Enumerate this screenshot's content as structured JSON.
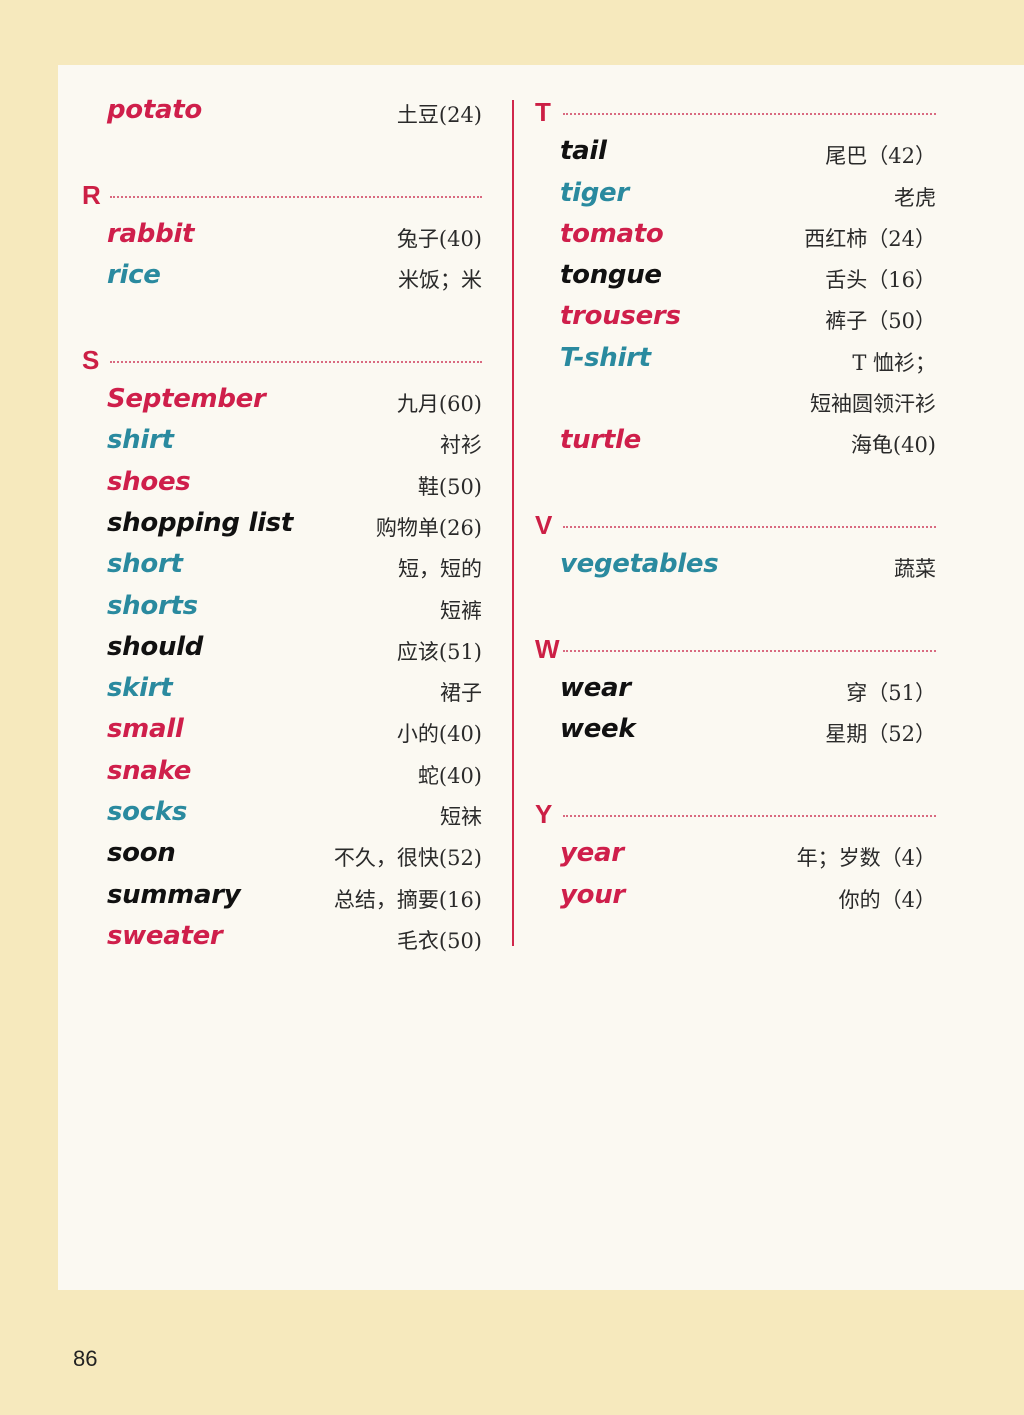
{
  "colors": {
    "red": "#cf1f4b",
    "teal": "#2a8a9f",
    "black": "#111111",
    "divider": "#d0284c",
    "background": "#f6e9bd",
    "paper": "#fbf9f2"
  },
  "left": {
    "potato": {
      "word": "potato",
      "cn": "土豆(24)"
    },
    "R": "R",
    "rabbit": {
      "word": "rabbit",
      "cn": "兔子(40)"
    },
    "rice": {
      "word": "rice",
      "cn": "米饭；米"
    },
    "S": "S",
    "september": {
      "word": "September",
      "cn": "九月(60)"
    },
    "shirt": {
      "word": "shirt",
      "cn": "衬衫"
    },
    "shoes": {
      "word": "shoes",
      "cn": "鞋(50)"
    },
    "shopping_list": {
      "word": "shopping list",
      "cn": "购物单(26)"
    },
    "short": {
      "word": "short",
      "cn": "短，短的"
    },
    "shorts": {
      "word": "shorts",
      "cn": "短裤"
    },
    "should": {
      "word": "should",
      "cn": "应该(51)"
    },
    "skirt": {
      "word": "skirt",
      "cn": "裙子"
    },
    "small": {
      "word": "small",
      "cn": "小的(40)"
    },
    "snake": {
      "word": "snake",
      "cn": "蛇(40)"
    },
    "socks": {
      "word": "socks",
      "cn": "短袜"
    },
    "soon": {
      "word": "soon",
      "cn": "不久，很快(52)"
    },
    "summary": {
      "word": "summary",
      "cn": "总结，摘要(16)"
    },
    "sweater": {
      "word": "sweater",
      "cn": "毛衣(50)"
    }
  },
  "right": {
    "T": "T",
    "tail": {
      "word": "tail",
      "cn": "尾巴（42）"
    },
    "tiger": {
      "word": "tiger",
      "cn": "老虎"
    },
    "tomato": {
      "word": "tomato",
      "cn": "西红柿（24）"
    },
    "tongue": {
      "word": "tongue",
      "cn": "舌头（16）"
    },
    "trousers": {
      "word": "trousers",
      "cn": "裤子（50）"
    },
    "tshirt": {
      "word": "T-shirt",
      "cn": "T 恤衫；",
      "cn2": "短袖圆领汗衫"
    },
    "turtle": {
      "word": "turtle",
      "cn": "海龟(40)"
    },
    "V": "V",
    "vegetables": {
      "word": "vegetables",
      "cn": "蔬菜"
    },
    "W": "W",
    "wear": {
      "word": "wear",
      "cn": "穿（51）"
    },
    "week": {
      "word": "week",
      "cn": "星期（52）"
    },
    "Y": "Y",
    "year": {
      "word": "year",
      "cn": "年；岁数（4）"
    },
    "your": {
      "word": "your",
      "cn": "你的（4）"
    }
  },
  "page_number": "86"
}
